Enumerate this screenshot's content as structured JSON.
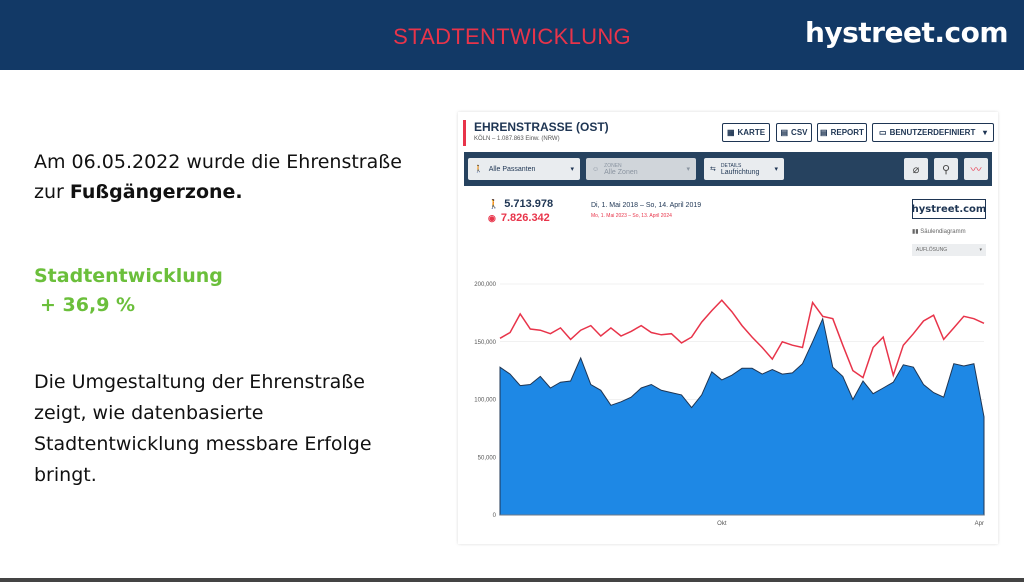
{
  "header": {
    "title": "STADTENTWICKLUNG",
    "brand": "hystreet.com"
  },
  "body": {
    "intro_part1": "Am 06.05.2022 wurde die Ehrenstraße",
    "intro_part2": "zur ",
    "intro_bold": "Fußgängerzone.",
    "growth_label": "Stadtentwicklung",
    "growth_value": "+ 36,9 %",
    "description_lines": [
      "Die Umgestaltung der Ehrenstraße",
      "zeigt, wie datenbasierte",
      "Stadtentwicklung messbare Erfolge",
      "bringt."
    ]
  },
  "screenshot": {
    "location_title": "EHRENSTRASSE (OST)",
    "location_sub": "KÖLN – 1.087.863 Einw. (NRW)",
    "buttons": {
      "map": "KARTE",
      "csv": "CSV",
      "report": "REPORT",
      "range": "BENUTZERDEFINIERT"
    },
    "filters": {
      "passers": "Alle Passanten",
      "zones_label": "ZONEN",
      "zones": "Alle Zonen",
      "details_label": "DETAILS",
      "direction": "Laufrichtung"
    },
    "stats": {
      "count_primary": "5.713.978",
      "count_secondary": "7.826.342",
      "period_primary": "Di, 1. Mai 2018 – So, 14. April 2019",
      "period_secondary": "Mo, 1. Mai 2023 – So, 13. April 2024"
    },
    "logo": "hystreet.com",
    "chart_type": "Säulendiagramm",
    "resolution": "AUFLÖSUNG",
    "colors": {
      "primary": "#1e88e5",
      "secondary": "#e8344a",
      "navy": "#1e3553",
      "growth": "#6bbf3b"
    }
  },
  "chart_data": {
    "type": "area",
    "x_ticks": [
      "Okt",
      "Apr"
    ],
    "y_ticks": [
      "0",
      "50,000",
      "100,000",
      "150,000",
      "200,000"
    ],
    "ylim": [
      0,
      200000
    ],
    "grid": true,
    "series": [
      {
        "values": [
          128000,
          122000,
          112000,
          113000,
          120000,
          110000,
          115000,
          116000,
          136000,
          113000,
          108000,
          95000,
          98000,
          102000,
          110000,
          113000,
          108000,
          106000,
          104000,
          93000,
          104000,
          124000,
          117000,
          121000,
          127000,
          127000,
          122000,
          126000,
          122000,
          123000,
          131000,
          150000,
          170000,
          128000,
          120000,
          100000,
          116000,
          105000,
          110000,
          115000,
          130000,
          128000,
          113000,
          106000,
          102000,
          131000,
          129000,
          131000,
          85000
        ]
      },
      {
        "values": [
          153000,
          158000,
          174000,
          161000,
          160000,
          157000,
          162000,
          152000,
          160000,
          164000,
          155000,
          162000,
          155000,
          159000,
          164000,
          158000,
          156000,
          157000,
          149000,
          154000,
          167000,
          177000,
          186000,
          176000,
          164000,
          154000,
          145000,
          135000,
          150000,
          147000,
          145000,
          184000,
          172000,
          170000,
          147000,
          125000,
          119000,
          145000,
          154000,
          121000,
          147000,
          157000,
          168000,
          173000,
          152000,
          162000,
          172000,
          170000,
          166000
        ]
      }
    ]
  }
}
